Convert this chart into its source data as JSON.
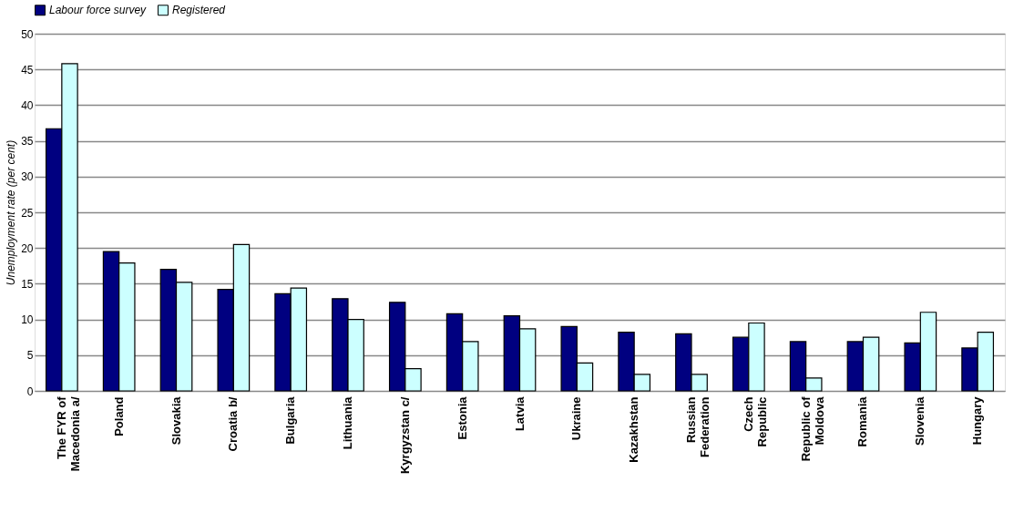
{
  "chart_data": {
    "type": "bar",
    "ylabel": "Unemployment rate (per cent)",
    "categories": [
      "The FYR of Macedonia a/",
      "Poland",
      "Slovakia",
      "Croatia b/",
      "Bulgaria",
      "Lithuania",
      "Kyrgyzstan c/",
      "Estonia",
      "Latvia",
      "Ukraine",
      "Kazakhstan",
      "Russian Federation",
      "Czech Republic",
      "Republic of Moldova",
      "Romania",
      "Slovenia",
      "Hungary"
    ],
    "series": [
      {
        "name": "Labour force survey",
        "color": "#000080",
        "values": [
          36.7,
          19.5,
          17.0,
          14.2,
          13.6,
          12.9,
          12.4,
          10.8,
          10.5,
          9.0,
          8.2,
          8.0,
          7.5,
          6.9,
          6.9,
          6.7,
          6.0
        ]
      },
      {
        "name": "Registered",
        "color": "#ccffff",
        "values": [
          45.8,
          17.9,
          15.2,
          20.5,
          14.4,
          10.0,
          3.1,
          6.9,
          8.7,
          3.9,
          2.3,
          2.3,
          9.5,
          1.8,
          7.5,
          11.0,
          8.2
        ]
      }
    ],
    "ylim": [
      0,
      50
    ],
    "yticks": [
      0,
      5,
      10,
      15,
      20,
      25,
      30,
      35,
      40,
      45,
      50
    ],
    "grid": "y",
    "legend": "top"
  }
}
